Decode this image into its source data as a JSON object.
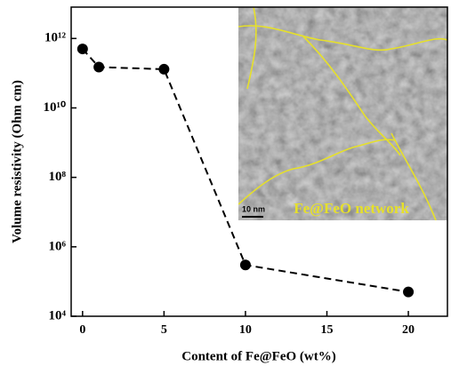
{
  "chart_data": {
    "type": "line",
    "x_label": "Content of Fe@FeO (wt%)",
    "y_label": "Volume resistivity (Ohm cm)",
    "x": [
      0,
      1,
      5,
      10,
      20
    ],
    "values": [
      500000000000,
      150000000000,
      130000000000,
      300000,
      50000
    ],
    "color": "#000000",
    "line_style": "dashed",
    "yscale": "log",
    "xlim": [
      -0.7,
      22.4
    ],
    "xticks": [
      0,
      5,
      10,
      15,
      20
    ],
    "ylim": [
      10000,
      8000000000000
    ],
    "yticks": [
      {
        "value": 10000,
        "label": "10⁴"
      },
      {
        "value": 1000000,
        "label": "10⁶"
      },
      {
        "value": 100000000,
        "label": "10⁸"
      },
      {
        "value": 10000000000,
        "label": "10¹⁰"
      },
      {
        "value": 1000000000000,
        "label": "10¹²"
      }
    ],
    "inset": {
      "scale_bar": "10 nm",
      "caption": "Fe@FeO network"
    }
  }
}
